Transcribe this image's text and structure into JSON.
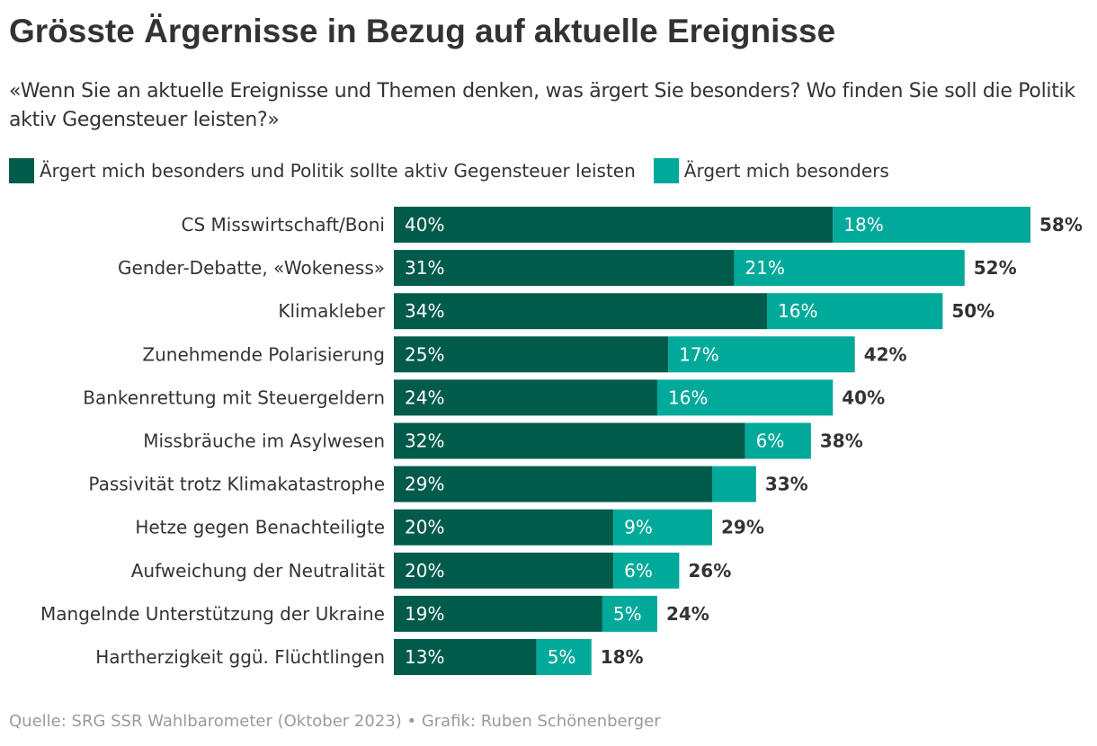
{
  "chart_data": {
    "type": "bar",
    "orientation": "horizontal",
    "stacked": true,
    "title": "Grösste Ärgernisse in Bezug auf aktuelle Ereignisse",
    "subtitle": "«Wenn Sie an aktuelle Ereignisse und Themen denken, was ärgert Sie besonders? Wo finden Sie soll die Politik aktiv Gegensteuer leisten?»",
    "categories": [
      "CS Misswirtschaft/Boni",
      "Gender-Debatte, «Wokeness»",
      "Klimakleber",
      "Zunehmende Polarisierung",
      "Bankenrettung mit Steuergeldern",
      "Missbräuche im Asylwesen",
      "Passivität trotz Klimakatastrophe",
      "Hetze gegen Benachteiligte",
      "Aufweichung der Neutralität",
      "Mangelnde Unterstützung der Ukraine",
      "Hartherzigkeit ggü. Flüchtlingen"
    ],
    "series": [
      {
        "name": "Ärgert mich besonders und Politik sollte aktiv Gegensteuer leisten",
        "color": "#005b4b",
        "values": [
          40,
          31,
          34,
          25,
          24,
          32,
          29,
          20,
          20,
          19,
          13
        ],
        "labels": [
          "40%",
          "31%",
          "34%",
          "25%",
          "24%",
          "32%",
          "29%",
          "20%",
          "20%",
          "19%",
          "13%"
        ]
      },
      {
        "name": "Ärgert mich besonders",
        "color": "#00a99a",
        "values": [
          18,
          21,
          16,
          17,
          16,
          6,
          4,
          9,
          6,
          5,
          5
        ],
        "labels": [
          "18%",
          "21%",
          "16%",
          "17%",
          "16%",
          "6%",
          "",
          "9%",
          "6%",
          "5%",
          "5%"
        ]
      }
    ],
    "totals": [
      "58%",
      "52%",
      "50%",
      "42%",
      "40%",
      "38%",
      "33%",
      "29%",
      "26%",
      "24%",
      "18%"
    ],
    "xlim": [
      0,
      58
    ]
  },
  "source": "Quelle: SRG SSR Wahlbarometer (Oktober 2023) • Grafik: Ruben Schönenberger"
}
